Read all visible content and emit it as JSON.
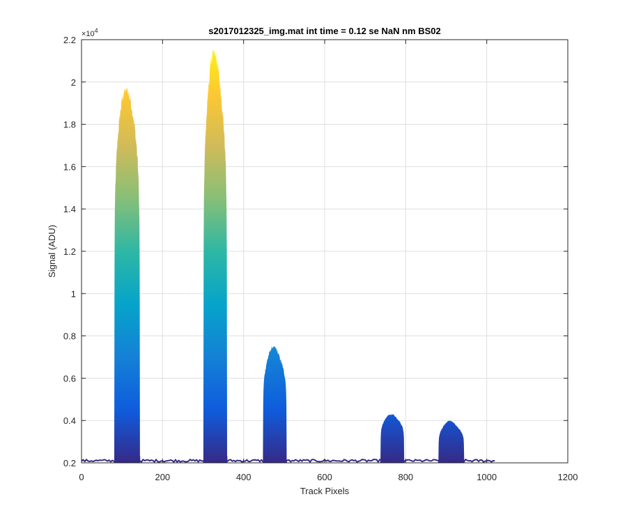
{
  "chart_data": {
    "type": "area",
    "title": "s2017012325_img.mat int time = 0.12 se  NaN nm BS02",
    "xlabel": "Track Pixels",
    "ylabel": "Signal (ADU)",
    "y_exponent_label": "×10",
    "y_exponent_power": "4",
    "xlim": [
      0,
      1200
    ],
    "ylim": [
      0.2,
      2.2
    ],
    "y_multiplier": 10000,
    "x_ticks": [
      0,
      200,
      400,
      600,
      800,
      1000,
      1200
    ],
    "x_tick_labels": [
      "0",
      "200",
      "400",
      "600",
      "800",
      "1000",
      "1200"
    ],
    "y_ticks": [
      0.2,
      0.4,
      0.6,
      0.8,
      1.0,
      1.2,
      1.4,
      1.6,
      1.8,
      2.0,
      2.2
    ],
    "y_tick_labels": [
      "0.2",
      "0.4",
      "0.6",
      "0.8",
      "1",
      "1.2",
      "1.4",
      "1.6",
      "1.8",
      "2",
      "2.2"
    ],
    "grid": true,
    "baseline": 0.21,
    "data_x_range": [
      0,
      1020
    ],
    "colormap": [
      "#352a87",
      "#0f5cdd",
      "#1481d6",
      "#06a4ca",
      "#2eb7a4",
      "#87bf77",
      "#d1bb59",
      "#fec832",
      "#f9fb0e"
    ],
    "peaks": [
      {
        "x_start": 80,
        "x_end": 145,
        "peak": 1.97,
        "min_top": 1.86
      },
      {
        "x_start": 300,
        "x_end": 360,
        "peak": 2.15,
        "min_top": 1.93
      },
      {
        "x_start": 447,
        "x_end": 507,
        "peak": 0.75,
        "min_top": 0.68
      },
      {
        "x_start": 737,
        "x_end": 797,
        "peak": 0.43,
        "min_top": 0.4
      },
      {
        "x_start": 880,
        "x_end": 945,
        "peak": 0.4,
        "min_top": 0.36
      }
    ]
  }
}
